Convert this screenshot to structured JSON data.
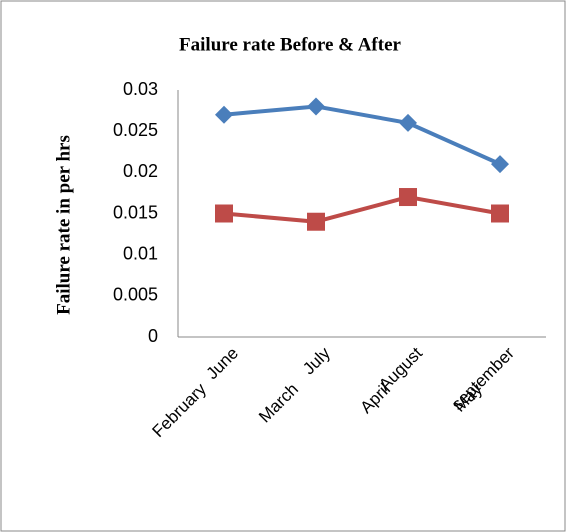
{
  "chart_data": {
    "type": "line",
    "title": "Failure rate Before & After",
    "y_label": "Failure rate in per hrs",
    "categories": [
      "June",
      "July",
      "August",
      "september"
    ],
    "category_groups": [
      "February",
      "March",
      "April",
      "May"
    ],
    "series": [
      {
        "color": "#4a7ebb",
        "marker": "diamond",
        "values": [
          0.027,
          0.028,
          0.026,
          0.021
        ]
      },
      {
        "color": "#be4b48",
        "marker": "square",
        "values": [
          0.015,
          0.014,
          0.017,
          0.015
        ]
      }
    ],
    "ylim": [
      0,
      0.03
    ],
    "yticks": [
      0,
      0.005,
      0.01,
      0.015,
      0.02,
      0.025,
      0.03
    ],
    "grid": false
  }
}
